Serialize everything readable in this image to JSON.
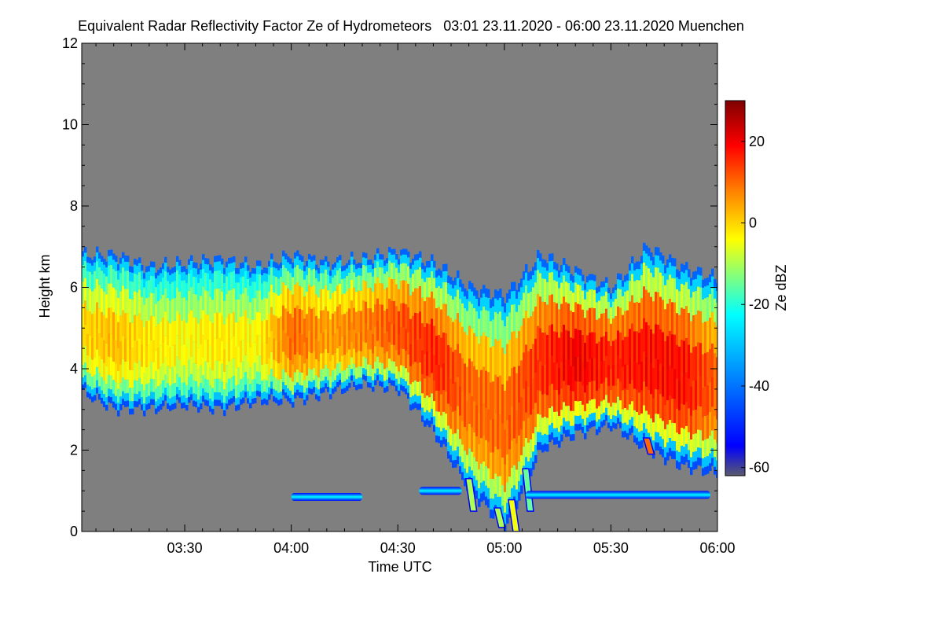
{
  "chart_data": {
    "type": "heatmap",
    "title": "Equivalent Radar Reflectivity Factor Ze of Hydrometeors   03:01 23.11.2020 - 06:00 23.11.2020 Muenchen",
    "xlabel": "Time UTC",
    "ylabel": "Height km",
    "xlim": [
      "03:01",
      "06:00"
    ],
    "ylim": [
      0,
      12
    ],
    "x_ticks": [
      "03:30",
      "04:00",
      "04:30",
      "05:00",
      "05:30",
      "06:00"
    ],
    "y_ticks": [
      "0",
      "2",
      "4",
      "6",
      "8",
      "10",
      "12"
    ],
    "colorbar": {
      "label": "Ze dBZ",
      "range": [
        -62,
        30
      ],
      "ticks": [
        "20",
        "0",
        "-20",
        "-40",
        "-60"
      ]
    },
    "background_color": "#7f7f7f",
    "colors": [
      "#5a5a6e",
      "#0000ff",
      "#00a0ff",
      "#00ffff",
      "#ffff00",
      "#ff8000",
      "#ff0000",
      "#7f0000"
    ],
    "cloud_profile": [
      {
        "time": "03:01",
        "base_km": 3.4,
        "top_km": 6.8,
        "core_dbz": 0
      },
      {
        "time": "03:10",
        "base_km": 3.0,
        "top_km": 6.8,
        "core_dbz": 2
      },
      {
        "time": "03:20",
        "base_km": 3.0,
        "top_km": 6.5,
        "core_dbz": -2
      },
      {
        "time": "03:30",
        "base_km": 3.1,
        "top_km": 6.6,
        "core_dbz": -4
      },
      {
        "time": "03:40",
        "base_km": 3.0,
        "top_km": 6.7,
        "core_dbz": -2
      },
      {
        "time": "03:50",
        "base_km": 3.2,
        "top_km": 6.5,
        "core_dbz": -4
      },
      {
        "time": "04:00",
        "base_km": 3.2,
        "top_km": 6.8,
        "core_dbz": 10
      },
      {
        "time": "04:10",
        "base_km": 3.4,
        "top_km": 6.6,
        "core_dbz": 5
      },
      {
        "time": "04:20",
        "base_km": 3.6,
        "top_km": 6.7,
        "core_dbz": 8
      },
      {
        "time": "04:30",
        "base_km": 3.5,
        "top_km": 6.9,
        "core_dbz": 12
      },
      {
        "time": "04:40",
        "base_km": 2.4,
        "top_km": 6.6,
        "core_dbz": 16
      },
      {
        "time": "04:50",
        "base_km": 1.0,
        "top_km": 6.0,
        "core_dbz": 10
      },
      {
        "time": "05:00",
        "base_km": 0.1,
        "top_km": 5.8,
        "core_dbz": 10
      },
      {
        "time": "05:10",
        "base_km": 2.0,
        "top_km": 6.8,
        "core_dbz": 15
      },
      {
        "time": "05:20",
        "base_km": 2.4,
        "top_km": 6.4,
        "core_dbz": 20
      },
      {
        "time": "05:30",
        "base_km": 2.6,
        "top_km": 6.0,
        "core_dbz": 16
      },
      {
        "time": "05:40",
        "base_km": 2.0,
        "top_km": 7.0,
        "core_dbz": 18
      },
      {
        "time": "05:50",
        "base_km": 1.6,
        "top_km": 6.5,
        "core_dbz": 18
      },
      {
        "time": "06:00",
        "base_km": 1.4,
        "top_km": 6.2,
        "core_dbz": 10
      }
    ],
    "low_level_layer": [
      {
        "start": "04:00",
        "end": "04:20",
        "height_km": 0.85,
        "dbz": -25
      },
      {
        "start": "04:36",
        "end": "04:48",
        "height_km": 1.0,
        "dbz": -25
      },
      {
        "start": "05:06",
        "end": "05:58",
        "height_km": 0.9,
        "dbz": -22
      }
    ],
    "precipitation_streaks": [
      {
        "time": "04:50",
        "bottom_km": 0.5,
        "dbz": -10
      },
      {
        "time": "04:58",
        "bottom_km": 0.1,
        "dbz": -10
      },
      {
        "time": "05:02",
        "bottom_km": 0.0,
        "dbz": -5
      },
      {
        "time": "05:06",
        "bottom_km": 0.5,
        "dbz": -15
      },
      {
        "time": "05:40",
        "bottom_km": 1.9,
        "dbz": 10
      }
    ]
  }
}
